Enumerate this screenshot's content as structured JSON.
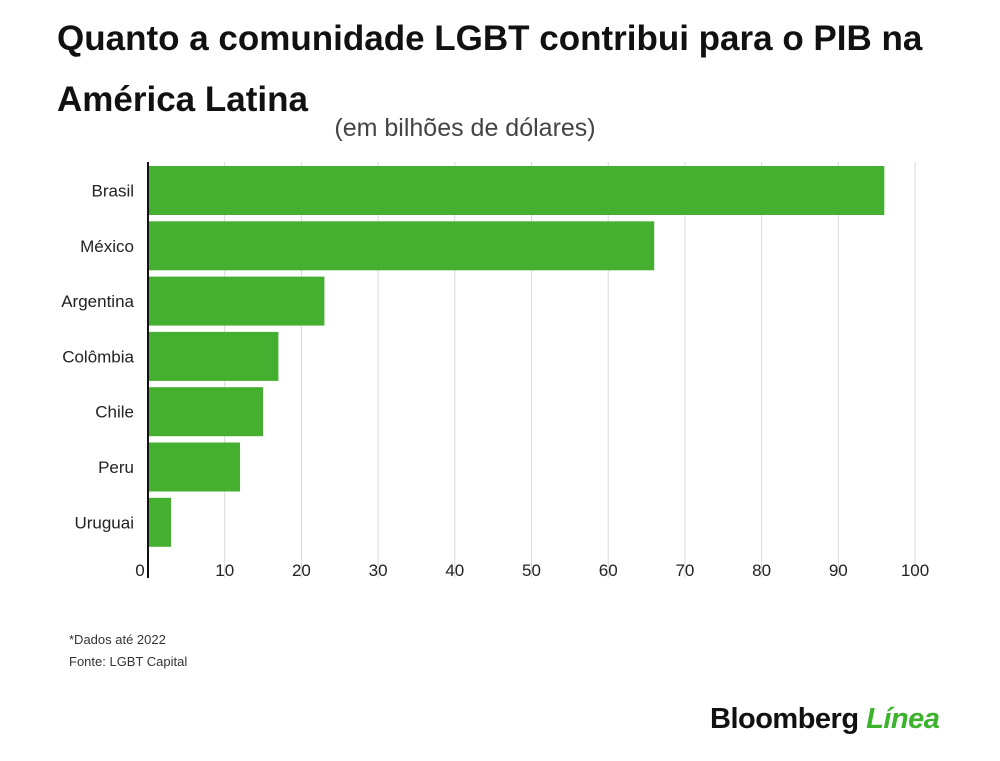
{
  "header": {
    "title": "Quanto a comunidade LGBT contribui para o PIB na América Latina",
    "subtitle": "(em bilhões de dólares)"
  },
  "footer": {
    "note": "*Dados até 2022",
    "source": "Fonte: LGBT Capital"
  },
  "brand": {
    "name": "Bloomberg",
    "accent": "Línea"
  },
  "colors": {
    "bar": "#45b02f",
    "grid": "#d9d9d9",
    "axis": "#111111",
    "accent": "#3db22d"
  },
  "chart_data": {
    "type": "bar",
    "orientation": "horizontal",
    "categories": [
      "Brasil",
      "México",
      "Argentina",
      "Colômbia",
      "Chile",
      "Peru",
      "Uruguai"
    ],
    "values": [
      96,
      66,
      23,
      17,
      15,
      12,
      3
    ],
    "xlim": [
      0,
      100
    ],
    "xticks": [
      0,
      10,
      20,
      30,
      40,
      50,
      60,
      70,
      80,
      90,
      100
    ],
    "grid": true,
    "legend": "none"
  }
}
